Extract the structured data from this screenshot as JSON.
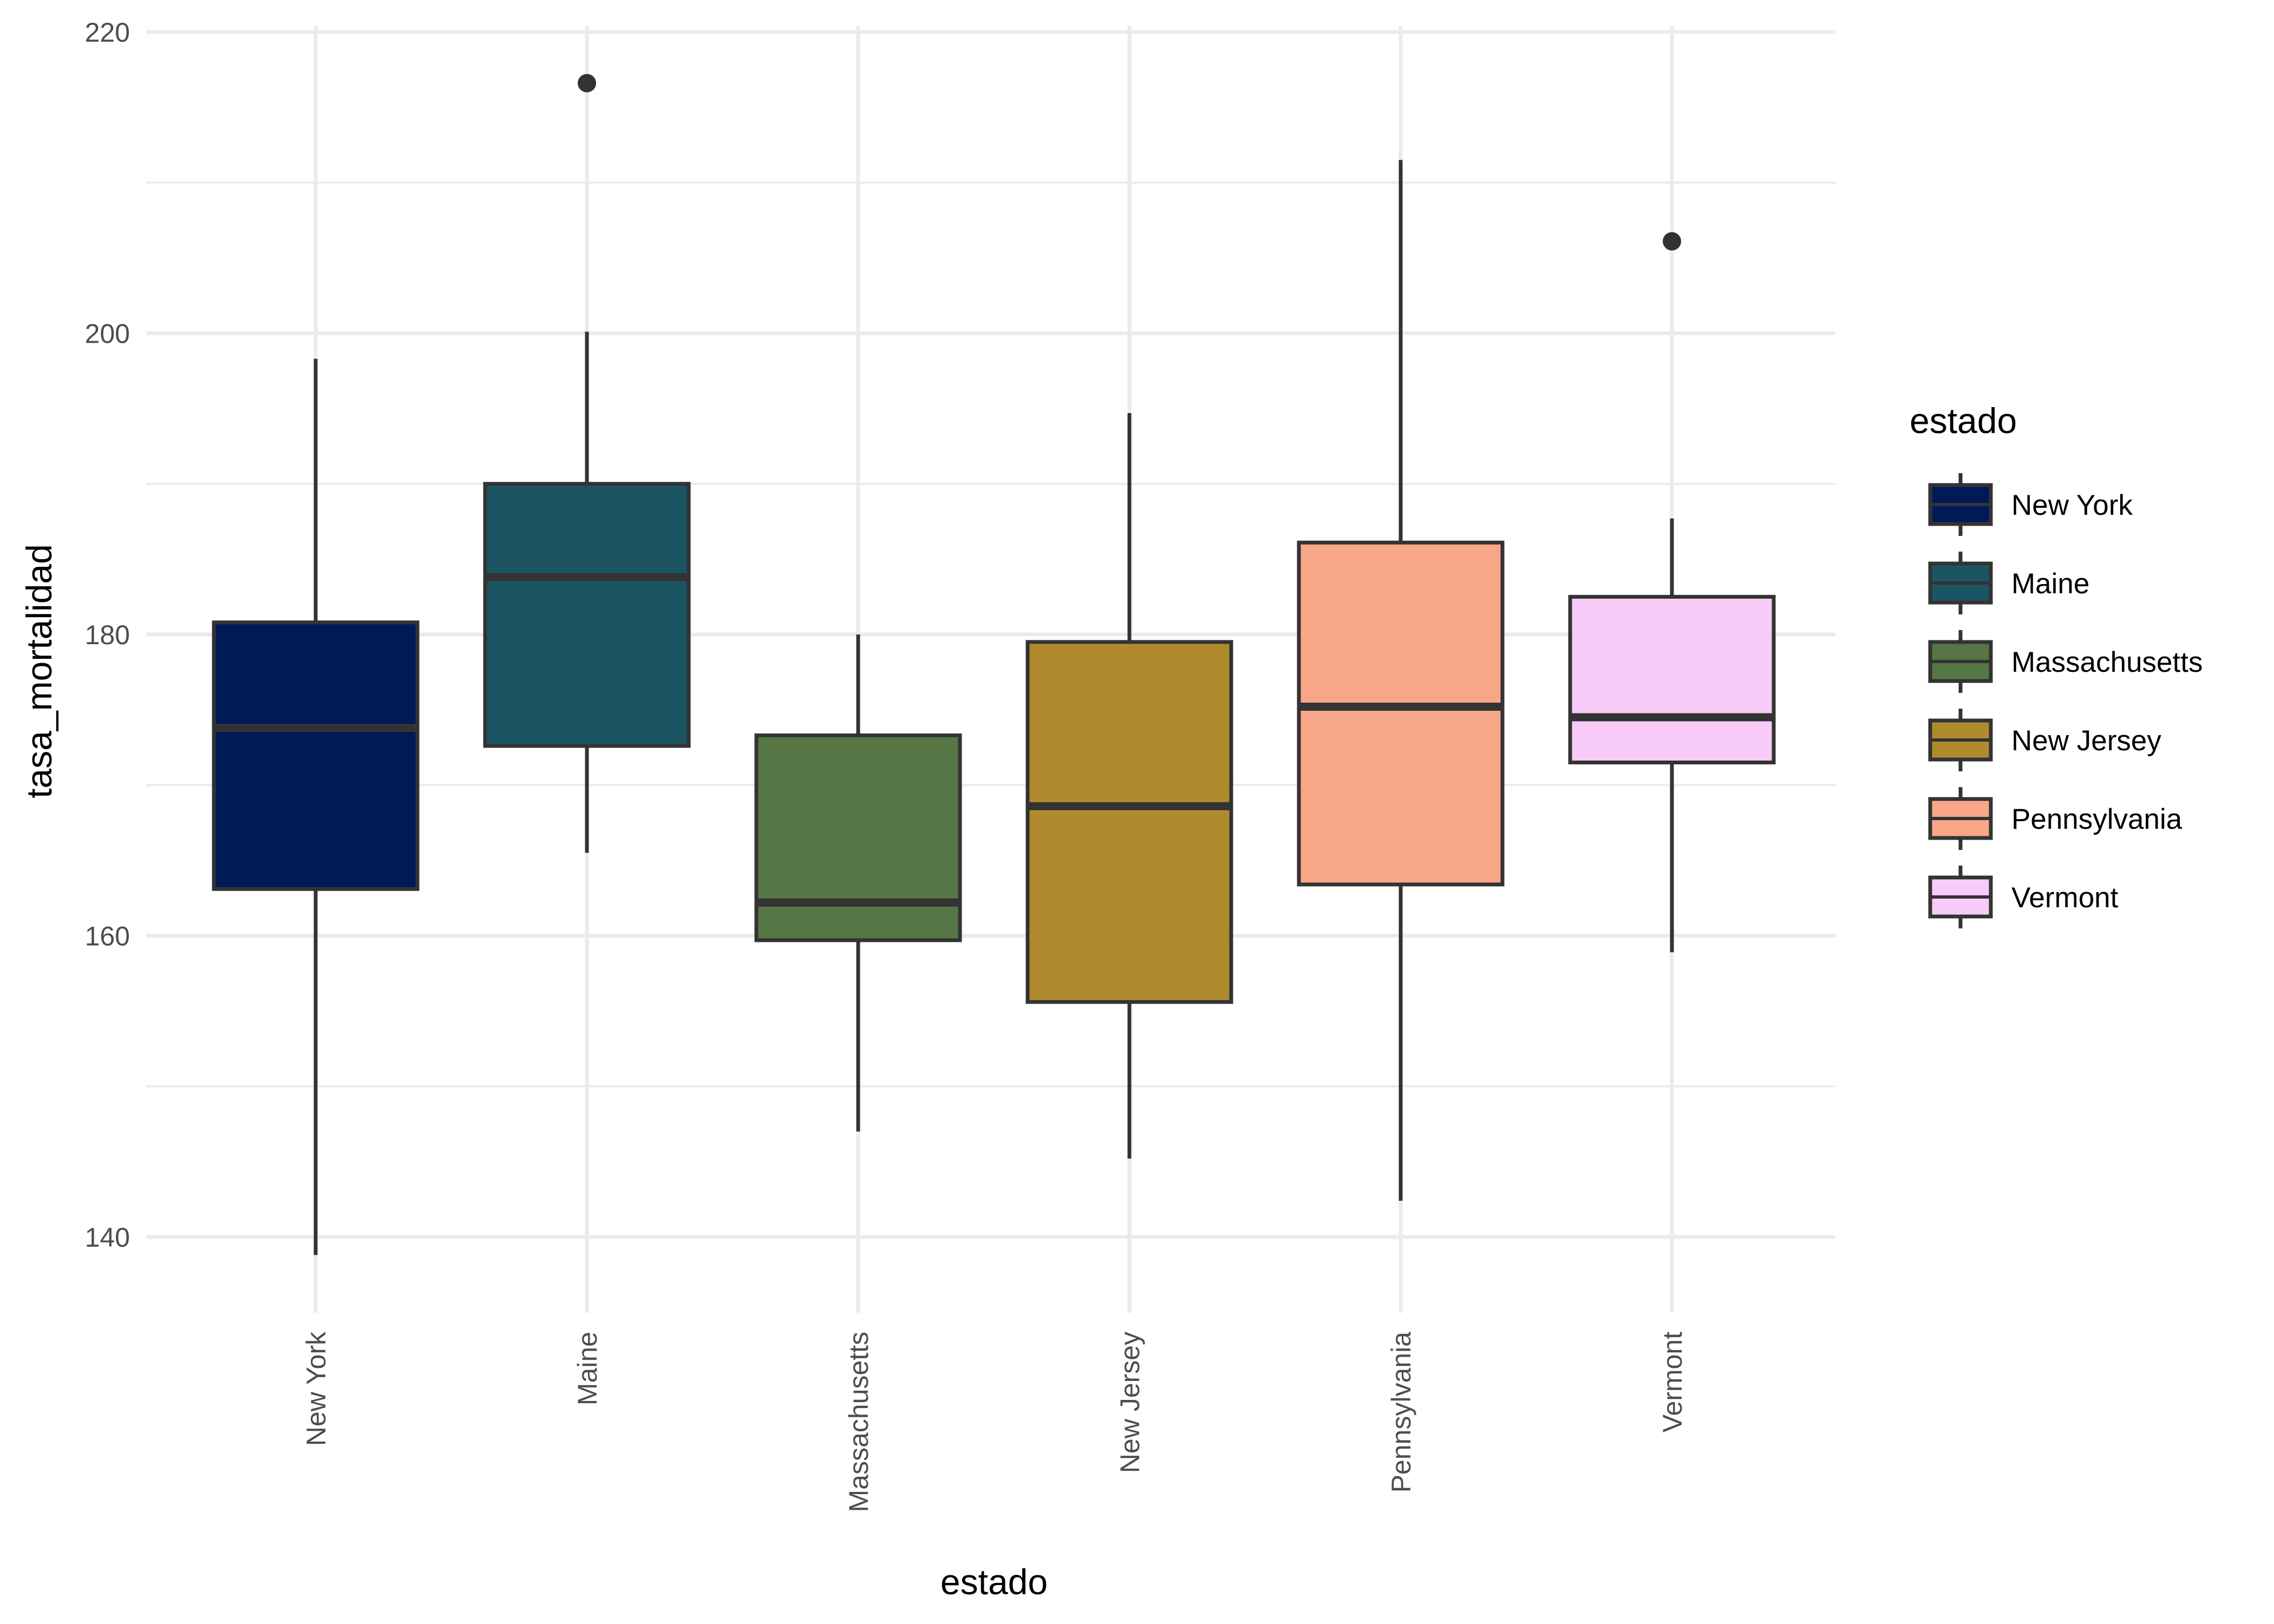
{
  "chart_data": {
    "type": "boxplot",
    "title": "",
    "xlabel": "estado",
    "ylabel": "tasa_mortalidad",
    "ylim": [
      135,
      221
    ],
    "yticks": [
      140,
      160,
      180,
      200,
      220
    ],
    "grid": true,
    "legend": {
      "title": "estado",
      "position": "right"
    },
    "categories": [
      "New York",
      "Maine",
      "Massachusetts",
      "New Jersey",
      "Pennsylvania",
      "Vermont"
    ],
    "series": [
      {
        "name": "New York",
        "color": "#001A57",
        "whisker_low": 138.8,
        "q1": 163.1,
        "median": 173.8,
        "q3": 180.8,
        "whisker_high": 198.3,
        "outliers": []
      },
      {
        "name": "Maine",
        "color": "#1B5563",
        "whisker_low": 165.5,
        "q1": 172.6,
        "median": 183.8,
        "q3": 190.0,
        "whisker_high": 200.1,
        "outliers": [
          216.6
        ]
      },
      {
        "name": "Massachusetts",
        "color": "#577646",
        "whisker_low": 147.0,
        "q1": 159.7,
        "median": 162.2,
        "q3": 173.3,
        "whisker_high": 180.0,
        "outliers": []
      },
      {
        "name": "New Jersey",
        "color": "#B08B2E",
        "whisker_low": 145.2,
        "q1": 155.6,
        "median": 168.6,
        "q3": 179.5,
        "whisker_high": 194.7,
        "outliers": []
      },
      {
        "name": "Pennsylvania",
        "color": "#F8A688",
        "whisker_low": 142.4,
        "q1": 163.4,
        "median": 175.2,
        "q3": 186.1,
        "whisker_high": 211.5,
        "outliers": []
      },
      {
        "name": "Vermont",
        "color": "#F8CAF8",
        "whisker_low": 158.9,
        "q1": 171.5,
        "median": 174.5,
        "q3": 182.5,
        "whisker_high": 187.7,
        "outliers": [
          206.1
        ]
      }
    ]
  }
}
